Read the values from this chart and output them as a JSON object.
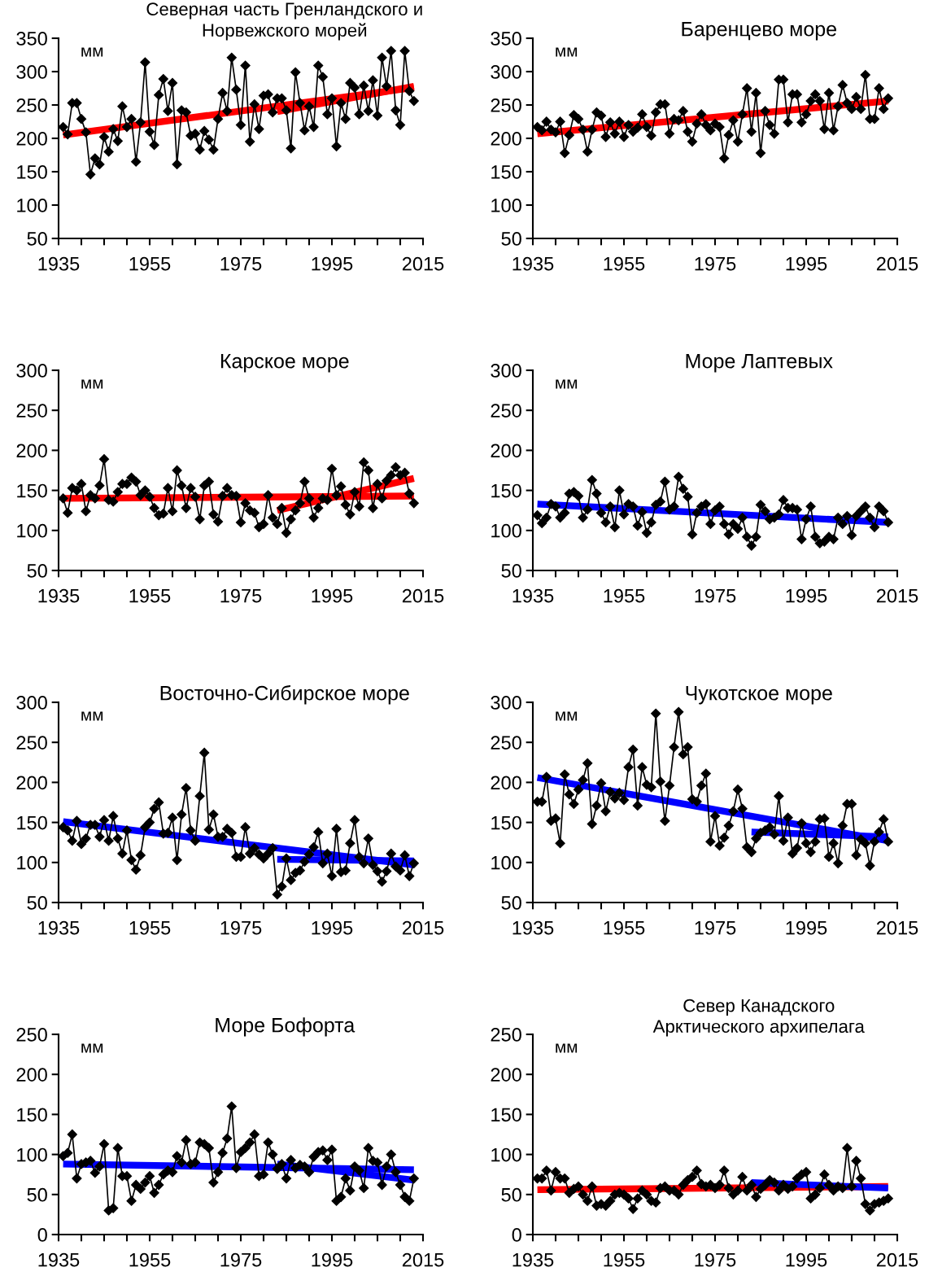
{
  "chart_data": [
    {
      "type": "line",
      "title": "Северная часть Гренландского и\nНорвежского морей",
      "ylabel": "мм",
      "xlim": [
        1935,
        2015
      ],
      "ylim": [
        50,
        350
      ],
      "yticks": [
        50,
        100,
        150,
        200,
        250,
        300,
        350
      ],
      "xticks": [
        1935,
        {
          "value": 1940,
          "label": null
        },
        {
          "value": 1945,
          "label": null
        },
        {
          "value": 1950,
          "label": null
        },
        1955,
        {
          "value": 1960,
          "label": null
        },
        {
          "value": 1965,
          "label": null
        },
        {
          "value": 1970,
          "label": null
        },
        1975,
        {
          "value": 1980,
          "label": null
        },
        {
          "value": 1985,
          "label": null
        },
        {
          "value": 1990,
          "label": null
        },
        1995,
        {
          "value": 2000,
          "label": null
        },
        {
          "value": 2005,
          "label": null
        },
        {
          "value": 2010,
          "label": null
        },
        2015
      ],
      "grid": false,
      "legend": false,
      "x": [
        1936,
        1937,
        1938,
        1939,
        1940,
        1941,
        1942,
        1943,
        1944,
        1945,
        1946,
        1947,
        1948,
        1949,
        1950,
        1951,
        1952,
        1953,
        1954,
        1955,
        1956,
        1957,
        1958,
        1959,
        1960,
        1961,
        1962,
        1963,
        1964,
        1965,
        1966,
        1967,
        1968,
        1969,
        1970,
        1971,
        1972,
        1973,
        1974,
        1975,
        1976,
        1977,
        1978,
        1979,
        1980,
        1981,
        1982,
        1983,
        1984,
        1985,
        1986,
        1987,
        1988,
        1989,
        1990,
        1991,
        1992,
        1993,
        1994,
        1995,
        1996,
        1997,
        1998,
        1999,
        2000,
        2001,
        2002,
        2003,
        2004,
        2005,
        2006,
        2007,
        2008,
        2009,
        2010,
        2011,
        2012,
        2013
      ],
      "series": [
        {
          "color": "#000000",
          "marker": "diamond",
          "values": [
            217,
            206,
            253,
            253,
            229,
            209,
            146,
            170,
            161,
            202,
            180,
            214,
            196,
            248,
            217,
            229,
            165,
            224,
            314,
            210,
            190,
            265,
            289,
            241,
            283,
            161,
            242,
            239,
            204,
            207,
            183,
            211,
            198,
            183,
            229,
            268,
            241,
            321,
            273,
            220,
            309,
            195,
            251,
            214,
            264,
            266,
            239,
            260,
            260,
            242,
            185,
            299,
            253,
            212,
            248,
            217,
            309,
            292,
            236,
            260,
            188,
            253,
            229,
            283,
            276,
            236,
            279,
            241,
            287,
            234,
            321,
            278,
            331,
            242,
            220,
            331,
            271,
            256
          ]
        },
        {
          "color": "#ff0000",
          "marker": "none",
          "x": [
            1936,
            2013
          ],
          "values": [
            205,
            276
          ]
        },
        {
          "color": "#ff0000",
          "marker": "none",
          "x": [
            1983,
            2013
          ],
          "values": [
            240,
            278
          ]
        }
      ]
    },
    {
      "type": "line",
      "title": "Баренцево море",
      "ylabel": "мм",
      "xlim": [
        1935,
        2015
      ],
      "ylim": [
        50,
        350
      ],
      "yticks": [
        50,
        100,
        150,
        200,
        250,
        300,
        350
      ],
      "xticks": [
        1935,
        {
          "value": 1940,
          "label": null
        },
        {
          "value": 1945,
          "label": null
        },
        {
          "value": 1950,
          "label": null
        },
        1955,
        {
          "value": 1960,
          "label": null
        },
        {
          "value": 1965,
          "label": null
        },
        {
          "value": 1970,
          "label": null
        },
        1975,
        {
          "value": 1980,
          "label": null
        },
        {
          "value": 1985,
          "label": null
        },
        {
          "value": 1990,
          "label": null
        },
        1995,
        {
          "value": 2000,
          "label": null
        },
        {
          "value": 2005,
          "label": null
        },
        {
          "value": 2010,
          "label": null
        },
        2015
      ],
      "grid": false,
      "legend": false,
      "x": [
        1936,
        1937,
        1938,
        1939,
        1940,
        1941,
        1942,
        1943,
        1944,
        1945,
        1946,
        1947,
        1948,
        1949,
        1950,
        1951,
        1952,
        1953,
        1954,
        1955,
        1956,
        1957,
        1958,
        1959,
        1960,
        1961,
        1962,
        1963,
        1964,
        1965,
        1966,
        1967,
        1968,
        1969,
        1970,
        1971,
        1972,
        1973,
        1974,
        1975,
        1976,
        1977,
        1978,
        1979,
        1980,
        1981,
        1982,
        1983,
        1984,
        1985,
        1986,
        1987,
        1988,
        1989,
        1990,
        1991,
        1992,
        1993,
        1994,
        1995,
        1996,
        1997,
        1998,
        1999,
        2000,
        2001,
        2002,
        2003,
        2004,
        2005,
        2006,
        2007,
        2008,
        2009,
        2010,
        2011,
        2012,
        2013
      ],
      "series": [
        {
          "color": "#000000",
          "marker": "diamond",
          "values": [
            217,
            212,
            225,
            213,
            209,
            225,
            178,
            205,
            235,
            229,
            213,
            180,
            213,
            239,
            234,
            202,
            224,
            207,
            225,
            202,
            220,
            210,
            216,
            236,
            217,
            204,
            239,
            251,
            251,
            207,
            229,
            227,
            241,
            210,
            195,
            222,
            236,
            220,
            212,
            222,
            217,
            170,
            205,
            227,
            195,
            236,
            275,
            210,
            268,
            178,
            241,
            220,
            207,
            288,
            288,
            224,
            266,
            266,
            224,
            236,
            256,
            266,
            256,
            214,
            268,
            212,
            248,
            280,
            253,
            244,
            262,
            244,
            295,
            229,
            229,
            275,
            244,
            260
          ]
        },
        {
          "color": "#ff0000",
          "marker": "none",
          "x": [
            1936,
            2013
          ],
          "values": [
            207,
            256
          ]
        }
      ]
    },
    {
      "type": "line",
      "title": "Карское море",
      "ylabel": "мм",
      "xlim": [
        1935,
        2015
      ],
      "ylim": [
        50,
        300
      ],
      "yticks": [
        50,
        100,
        150,
        200,
        250,
        300
      ],
      "xticks": [
        1935,
        {
          "value": 1940,
          "label": null
        },
        {
          "value": 1945,
          "label": null
        },
        {
          "value": 1950,
          "label": null
        },
        1955,
        {
          "value": 1960,
          "label": null
        },
        {
          "value": 1965,
          "label": null
        },
        {
          "value": 1970,
          "label": null
        },
        1975,
        {
          "value": 1980,
          "label": null
        },
        {
          "value": 1985,
          "label": null
        },
        {
          "value": 1990,
          "label": null
        },
        1995,
        {
          "value": 2000,
          "label": null
        },
        {
          "value": 2005,
          "label": null
        },
        {
          "value": 2010,
          "label": null
        },
        2015
      ],
      "grid": false,
      "legend": false,
      "x": [
        1936,
        1937,
        1938,
        1939,
        1940,
        1941,
        1942,
        1943,
        1944,
        1945,
        1946,
        1947,
        1948,
        1949,
        1950,
        1951,
        1952,
        1953,
        1954,
        1955,
        1956,
        1957,
        1958,
        1959,
        1960,
        1961,
        1962,
        1963,
        1964,
        1965,
        1966,
        1967,
        1968,
        1969,
        1970,
        1971,
        1972,
        1973,
        1974,
        1975,
        1976,
        1977,
        1978,
        1979,
        1980,
        1981,
        1982,
        1983,
        1984,
        1985,
        1986,
        1987,
        1988,
        1989,
        1990,
        1991,
        1992,
        1993,
        1994,
        1995,
        1996,
        1997,
        1998,
        1999,
        2000,
        2001,
        2002,
        2003,
        2004,
        2005,
        2006,
        2007,
        2008,
        2009,
        2010,
        2011,
        2012,
        2013
      ],
      "series": [
        {
          "color": "#000000",
          "marker": "diamond",
          "values": [
            140,
            122,
            153,
            150,
            158,
            124,
            144,
            140,
            156,
            189,
            138,
            136,
            148,
            158,
            158,
            166,
            161,
            144,
            150,
            142,
            128,
            119,
            121,
            153,
            124,
            175,
            156,
            128,
            153,
            142,
            114,
            156,
            161,
            120,
            111,
            143,
            153,
            144,
            143,
            110,
            134,
            125,
            122,
            104,
            108,
            144,
            116,
            108,
            128,
            97,
            114,
            125,
            134,
            161,
            140,
            116,
            128,
            140,
            138,
            177,
            144,
            155,
            132,
            120,
            148,
            130,
            185,
            175,
            128,
            158,
            140,
            162,
            169,
            179,
            169,
            172,
            146,
            134
          ]
        },
        {
          "color": "#ff0000",
          "marker": "none",
          "x": [
            1936,
            2013
          ],
          "values": [
            140,
            143
          ]
        },
        {
          "color": "#ff0000",
          "marker": "none",
          "x": [
            1983,
            2013
          ],
          "values": [
            125,
            165
          ]
        }
      ]
    },
    {
      "type": "line",
      "title": "Море Лаптевых",
      "ylabel": "мм",
      "xlim": [
        1935,
        2015
      ],
      "ylim": [
        50,
        300
      ],
      "yticks": [
        50,
        100,
        150,
        200,
        250,
        300
      ],
      "xticks": [
        1935,
        {
          "value": 1940,
          "label": null
        },
        {
          "value": 1945,
          "label": null
        },
        {
          "value": 1950,
          "label": null
        },
        1955,
        {
          "value": 1960,
          "label": null
        },
        {
          "value": 1965,
          "label": null
        },
        {
          "value": 1970,
          "label": null
        },
        1975,
        {
          "value": 1980,
          "label": null
        },
        {
          "value": 1985,
          "label": null
        },
        {
          "value": 1990,
          "label": null
        },
        1995,
        {
          "value": 2000,
          "label": null
        },
        {
          "value": 2005,
          "label": null
        },
        {
          "value": 2010,
          "label": null
        },
        2015
      ],
      "grid": false,
      "legend": false,
      "x": [
        1936,
        1937,
        1938,
        1939,
        1940,
        1941,
        1942,
        1943,
        1944,
        1945,
        1946,
        1947,
        1948,
        1949,
        1950,
        1951,
        1952,
        1953,
        1954,
        1955,
        1956,
        1957,
        1958,
        1959,
        1960,
        1961,
        1962,
        1963,
        1964,
        1965,
        1966,
        1967,
        1968,
        1969,
        1970,
        1971,
        1972,
        1973,
        1974,
        1975,
        1976,
        1977,
        1978,
        1979,
        1980,
        1981,
        1982,
        1983,
        1984,
        1985,
        1986,
        1987,
        1988,
        1989,
        1990,
        1991,
        1992,
        1993,
        1994,
        1995,
        1996,
        1997,
        1998,
        1999,
        2000,
        2001,
        2002,
        2003,
        2004,
        2005,
        2006,
        2007,
        2008,
        2009,
        2010,
        2011,
        2012,
        2013
      ],
      "series": [
        {
          "color": "#000000",
          "marker": "diamond",
          "values": [
            119,
            109,
            116,
            133,
            130,
            116,
            122,
            146,
            148,
            143,
            116,
            126,
            163,
            146,
            122,
            110,
            130,
            104,
            150,
            120,
            133,
            130,
            106,
            123,
            97,
            110,
            132,
            136,
            161,
            126,
            130,
            167,
            152,
            142,
            95,
            122,
            130,
            133,
            108,
            125,
            130,
            108,
            95,
            108,
            102,
            116,
            92,
            81,
            92,
            132,
            124,
            114,
            116,
            120,
            138,
            128,
            128,
            126,
            89,
            114,
            130,
            92,
            84,
            86,
            92,
            89,
            116,
            108,
            118,
            94,
            118,
            124,
            130,
            116,
            104,
            130,
            124,
            110
          ]
        },
        {
          "color": "#0000ff",
          "marker": "none",
          "x": [
            1936,
            2013
          ],
          "values": [
            133,
            110
          ]
        }
      ]
    },
    {
      "type": "line",
      "title": "Восточно-Сибирское море",
      "ylabel": "мм",
      "xlim": [
        1935,
        2015
      ],
      "ylim": [
        50,
        300
      ],
      "yticks": [
        50,
        100,
        150,
        200,
        250,
        300
      ],
      "xticks": [
        1935,
        {
          "value": 1940,
          "label": null
        },
        {
          "value": 1945,
          "label": null
        },
        {
          "value": 1950,
          "label": null
        },
        1955,
        {
          "value": 1960,
          "label": null
        },
        {
          "value": 1965,
          "label": null
        },
        {
          "value": 1970,
          "label": null
        },
        1975,
        {
          "value": 1980,
          "label": null
        },
        {
          "value": 1985,
          "label": null
        },
        {
          "value": 1990,
          "label": null
        },
        1995,
        {
          "value": 2000,
          "label": null
        },
        {
          "value": 2005,
          "label": null
        },
        {
          "value": 2010,
          "label": null
        },
        2015
      ],
      "grid": false,
      "legend": false,
      "x": [
        1936,
        1937,
        1938,
        1939,
        1940,
        1941,
        1942,
        1943,
        1944,
        1945,
        1946,
        1947,
        1948,
        1949,
        1950,
        1951,
        1952,
        1953,
        1954,
        1955,
        1956,
        1957,
        1958,
        1959,
        1960,
        1961,
        1962,
        1963,
        1964,
        1965,
        1966,
        1967,
        1968,
        1969,
        1970,
        1971,
        1972,
        1973,
        1974,
        1975,
        1976,
        1977,
        1978,
        1979,
        1980,
        1981,
        1982,
        1983,
        1984,
        1985,
        1986,
        1987,
        1988,
        1989,
        1990,
        1991,
        1992,
        1993,
        1994,
        1995,
        1996,
        1997,
        1998,
        1999,
        2000,
        2001,
        2002,
        2003,
        2004,
        2005,
        2006,
        2007,
        2008,
        2009,
        2010,
        2011,
        2012,
        2013
      ],
      "series": [
        {
          "color": "#000000",
          "marker": "diamond",
          "values": [
            144,
            140,
            127,
            152,
            123,
            130,
            147,
            147,
            132,
            153,
            127,
            158,
            130,
            111,
            140,
            103,
            91,
            109,
            144,
            150,
            167,
            175,
            136,
            137,
            156,
            103,
            160,
            193,
            140,
            127,
            183,
            237,
            141,
            160,
            132,
            132,
            142,
            137,
            107,
            107,
            144,
            111,
            118,
            110,
            105,
            111,
            118,
            60,
            70,
            105,
            78,
            87,
            90,
            101,
            110,
            119,
            138,
            99,
            111,
            83,
            142,
            88,
            90,
            124,
            153,
            107,
            99,
            130,
            97,
            89,
            76,
            89,
            111,
            95,
            90,
            109,
            83,
            99
          ]
        },
        {
          "color": "#0000ff",
          "marker": "none",
          "x": [
            1936,
            2013
          ],
          "values": [
            151,
            97
          ]
        },
        {
          "color": "#0000ff",
          "marker": "none",
          "x": [
            1983,
            2013
          ],
          "values": [
            104,
            102
          ]
        }
      ]
    },
    {
      "type": "line",
      "title": "Чукотское море",
      "ylabel": "мм",
      "xlim": [
        1935,
        2015
      ],
      "ylim": [
        50,
        300
      ],
      "yticks": [
        50,
        100,
        150,
        200,
        250,
        300
      ],
      "xticks": [
        1935,
        {
          "value": 1940,
          "label": null
        },
        {
          "value": 1945,
          "label": null
        },
        {
          "value": 1950,
          "label": null
        },
        1955,
        {
          "value": 1960,
          "label": null
        },
        {
          "value": 1965,
          "label": null
        },
        {
          "value": 1970,
          "label": null
        },
        1975,
        {
          "value": 1980,
          "label": null
        },
        {
          "value": 1985,
          "label": null
        },
        {
          "value": 1990,
          "label": null
        },
        1995,
        {
          "value": 2000,
          "label": null
        },
        {
          "value": 2005,
          "label": null
        },
        {
          "value": 2010,
          "label": null
        },
        2015
      ],
      "grid": false,
      "legend": false,
      "x": [
        1936,
        1937,
        1938,
        1939,
        1940,
        1941,
        1942,
        1943,
        1944,
        1945,
        1946,
        1947,
        1948,
        1949,
        1950,
        1951,
        1952,
        1953,
        1954,
        1955,
        1956,
        1957,
        1958,
        1959,
        1960,
        1961,
        1962,
        1963,
        1964,
        1965,
        1966,
        1967,
        1968,
        1969,
        1970,
        1971,
        1972,
        1973,
        1974,
        1975,
        1976,
        1977,
        1978,
        1979,
        1980,
        1981,
        1982,
        1983,
        1984,
        1985,
        1986,
        1987,
        1988,
        1989,
        1990,
        1991,
        1992,
        1993,
        1994,
        1995,
        1996,
        1997,
        1998,
        1999,
        2000,
        2001,
        2002,
        2003,
        2004,
        2005,
        2006,
        2007,
        2008,
        2009,
        2010,
        2011,
        2012,
        2013
      ],
      "series": [
        {
          "color": "#000000",
          "marker": "diamond",
          "values": [
            176,
            176,
            207,
            152,
            155,
            124,
            210,
            185,
            173,
            191,
            203,
            224,
            148,
            171,
            199,
            164,
            188,
            180,
            187,
            178,
            219,
            241,
            171,
            219,
            197,
            194,
            286,
            201,
            152,
            196,
            244,
            288,
            235,
            244,
            179,
            176,
            196,
            211,
            126,
            158,
            121,
            131,
            146,
            164,
            191,
            167,
            119,
            113,
            130,
            137,
            140,
            144,
            135,
            183,
            127,
            156,
            111,
            118,
            149,
            124,
            113,
            126,
            154,
            155,
            107,
            124,
            99,
            146,
            173,
            173,
            109,
            129,
            124,
            96,
            126,
            138,
            154,
            126
          ]
        },
        {
          "color": "#0000ff",
          "marker": "none",
          "x": [
            1936,
            2013
          ],
          "values": [
            206,
            127
          ]
        },
        {
          "color": "#0000ff",
          "marker": "none",
          "x": [
            1983,
            2013
          ],
          "values": [
            138,
            132
          ]
        }
      ]
    },
    {
      "type": "line",
      "title": "Море Бофорта",
      "ylabel": "мм",
      "xlim": [
        1935,
        2015
      ],
      "ylim": [
        0,
        250
      ],
      "yticks": [
        0,
        50,
        100,
        150,
        200,
        250
      ],
      "xticks": [
        1935,
        {
          "value": 1940,
          "label": null
        },
        {
          "value": 1945,
          "label": null
        },
        {
          "value": 1950,
          "label": null
        },
        1955,
        {
          "value": 1960,
          "label": null
        },
        {
          "value": 1965,
          "label": null
        },
        {
          "value": 1970,
          "label": null
        },
        1975,
        {
          "value": 1980,
          "label": null
        },
        {
          "value": 1985,
          "label": null
        },
        {
          "value": 1990,
          "label": null
        },
        1995,
        {
          "value": 2000,
          "label": null
        },
        {
          "value": 2005,
          "label": null
        },
        {
          "value": 2010,
          "label": null
        },
        2015
      ],
      "grid": false,
      "legend": false,
      "x": [
        1936,
        1937,
        1938,
        1939,
        1940,
        1941,
        1942,
        1943,
        1944,
        1945,
        1946,
        1947,
        1948,
        1949,
        1950,
        1951,
        1952,
        1953,
        1954,
        1955,
        1956,
        1957,
        1958,
        1959,
        1960,
        1961,
        1962,
        1963,
        1964,
        1965,
        1966,
        1967,
        1968,
        1969,
        1970,
        1971,
        1972,
        1973,
        1974,
        1975,
        1976,
        1977,
        1978,
        1979,
        1980,
        1981,
        1982,
        1983,
        1984,
        1985,
        1986,
        1987,
        1988,
        1989,
        1990,
        1991,
        1992,
        1993,
        1994,
        1995,
        1996,
        1997,
        1998,
        1999,
        2000,
        2001,
        2002,
        2003,
        2004,
        2005,
        2006,
        2007,
        2008,
        2009,
        2010,
        2011,
        2012,
        2013
      ],
      "series": [
        {
          "color": "#000000",
          "marker": "diamond",
          "values": [
            98,
            102,
            125,
            70,
            88,
            90,
            92,
            77,
            85,
            113,
            30,
            33,
            108,
            73,
            73,
            42,
            62,
            57,
            65,
            73,
            52,
            62,
            75,
            80,
            78,
            98,
            90,
            118,
            88,
            90,
            115,
            113,
            108,
            65,
            78,
            102,
            120,
            160,
            83,
            103,
            108,
            115,
            125,
            73,
            75,
            115,
            100,
            82,
            88,
            70,
            93,
            83,
            87,
            85,
            78,
            97,
            103,
            105,
            93,
            106,
            42,
            47,
            70,
            55,
            85,
            80,
            58,
            108,
            92,
            90,
            62,
            85,
            100,
            78,
            62,
            47,
            42,
            70
          ]
        },
        {
          "color": "#0000ff",
          "marker": "none",
          "x": [
            1936,
            2013
          ],
          "values": [
            88,
            81
          ]
        },
        {
          "color": "#0000ff",
          "marker": "none",
          "x": [
            1983,
            2013
          ],
          "values": [
            88,
            68
          ]
        }
      ]
    },
    {
      "type": "line",
      "title": "Север Канадского\nАрктического архипелага",
      "ylabel": "мм",
      "xlim": [
        1935,
        2015
      ],
      "ylim": [
        0,
        250
      ],
      "yticks": [
        0,
        50,
        100,
        150,
        200,
        250
      ],
      "xticks": [
        1935,
        {
          "value": 1940,
          "label": null
        },
        {
          "value": 1945,
          "label": null
        },
        {
          "value": 1950,
          "label": null
        },
        1955,
        {
          "value": 1960,
          "label": null
        },
        {
          "value": 1965,
          "label": null
        },
        {
          "value": 1970,
          "label": null
        },
        1975,
        {
          "value": 1980,
          "label": null
        },
        {
          "value": 1985,
          "label": null
        },
        {
          "value": 1990,
          "label": null
        },
        1995,
        {
          "value": 2000,
          "label": null
        },
        {
          "value": 2005,
          "label": null
        },
        {
          "value": 2010,
          "label": null
        },
        2015
      ],
      "grid": false,
      "legend": false,
      "x": [
        1936,
        1937,
        1938,
        1939,
        1940,
        1941,
        1942,
        1943,
        1944,
        1945,
        1946,
        1947,
        1948,
        1949,
        1950,
        1951,
        1952,
        1953,
        1954,
        1955,
        1956,
        1957,
        1958,
        1959,
        1960,
        1961,
        1962,
        1963,
        1964,
        1965,
        1966,
        1967,
        1968,
        1969,
        1970,
        1971,
        1972,
        1973,
        1974,
        1975,
        1976,
        1977,
        1978,
        1979,
        1980,
        1981,
        1982,
        1983,
        1984,
        1985,
        1986,
        1987,
        1988,
        1989,
        1990,
        1991,
        1992,
        1993,
        1994,
        1995,
        1996,
        1997,
        1998,
        1999,
        2000,
        2001,
        2002,
        2003,
        2004,
        2005,
        2006,
        2007,
        2008,
        2009,
        2010,
        2011,
        2012,
        2013
      ],
      "series": [
        {
          "color": "#000000",
          "marker": "diamond",
          "values": [
            70,
            70,
            80,
            55,
            78,
            70,
            70,
            52,
            57,
            60,
            50,
            42,
            60,
            36,
            38,
            36,
            42,
            50,
            52,
            50,
            45,
            32,
            45,
            55,
            50,
            42,
            40,
            58,
            60,
            55,
            55,
            50,
            62,
            68,
            72,
            80,
            63,
            60,
            62,
            58,
            62,
            80,
            58,
            50,
            55,
            72,
            55,
            62,
            47,
            57,
            62,
            68,
            65,
            55,
            62,
            57,
            60,
            70,
            75,
            78,
            45,
            50,
            58,
            75,
            62,
            55,
            60,
            58,
            108,
            60,
            92,
            70,
            38,
            30,
            38,
            40,
            42,
            45
          ]
        },
        {
          "color": "#ff0000",
          "marker": "none",
          "x": [
            1936,
            2013
          ],
          "values": [
            56,
            60
          ]
        },
        {
          "color": "#0000ff",
          "marker": "none",
          "x": [
            1983,
            2013
          ],
          "values": [
            65,
            58
          ]
        }
      ]
    }
  ]
}
